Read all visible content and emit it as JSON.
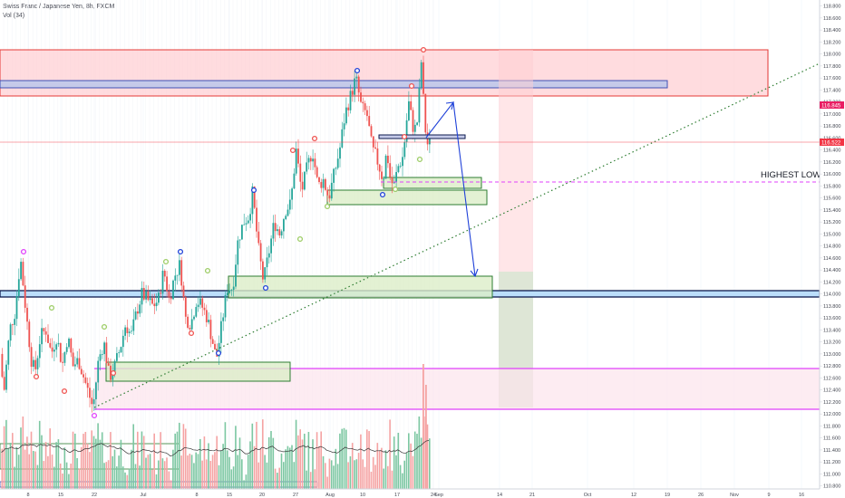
{
  "header": {
    "title": "Swiss Franc / Japanese Yen, 8h, FXCM",
    "indicator": "Vol (34)"
  },
  "annotations": {
    "highest_low": "HIGHEST LOW"
  },
  "colors": {
    "bull": "#26a69a",
    "bear": "#ef5350",
    "resistance_zone": "#ffcdd2",
    "resistance_border": "#e53935",
    "blue_zone": "#c5cae9",
    "support_zone": "#dcedc8",
    "support_border": "#2e7d32",
    "magenta": "#e040fb",
    "price_label_pink": "#e91e63",
    "price_label_red": "#f23645",
    "projection": "#1e40d8"
  },
  "chart_data": {
    "type": "candlestick",
    "title": "Swiss Franc / Japanese Yen, 8h, FXCM",
    "y_axis": {
      "ticks": [
        "118.800",
        "118.600",
        "118.400",
        "118.200",
        "118.000",
        "117.800",
        "117.600",
        "117.400",
        "117.200",
        "117.000",
        "116.800",
        "116.600",
        "116.400",
        "116.200",
        "116.000",
        "115.800",
        "115.600",
        "115.400",
        "115.200",
        "115.000",
        "114.800",
        "114.600",
        "114.400",
        "114.200",
        "114.000",
        "113.800",
        "113.600",
        "113.400",
        "113.200",
        "113.000",
        "112.800",
        "112.600",
        "112.400",
        "112.200",
        "112.000",
        "111.800",
        "111.600",
        "111.400",
        "111.200",
        "111.000",
        "110.800"
      ],
      "range": [
        110.75,
        118.9
      ]
    },
    "x_axis": {
      "ticks": [
        "8",
        "15",
        "22",
        "Jul",
        "8",
        "15",
        "20",
        "27",
        "Aug",
        "10",
        "17",
        "24",
        "Sep",
        "14",
        "21",
        "Oct",
        "12",
        "19",
        "26",
        "Nov",
        "9",
        "16"
      ]
    },
    "price_labels": [
      {
        "value": "116.845",
        "color": "pink"
      },
      {
        "value": "116.522",
        "color": "red"
      }
    ],
    "zones": [
      {
        "name": "resistance-zone",
        "low": 117.2,
        "high": 118.05
      },
      {
        "name": "blue-resistance-line",
        "low": 117.45,
        "high": 117.6
      },
      {
        "name": "big-support-line",
        "low": 113.95,
        "high": 114.05
      },
      {
        "name": "lower-magenta-range",
        "low": 112.0,
        "high": 112.75
      }
    ],
    "lines": [
      {
        "name": "trend-dotted",
        "from": [
          112.1
        ],
        "to": [
          117.8
        ]
      },
      {
        "name": "highest-low-dashed",
        "value": 115.85
      },
      {
        "name": "current-price-line",
        "value": 116.522
      }
    ],
    "projection_path": {
      "points": [
        116.6,
        117.1,
        114.25
      ]
    },
    "volume_indicator": "Vol (34)",
    "grid": true
  }
}
